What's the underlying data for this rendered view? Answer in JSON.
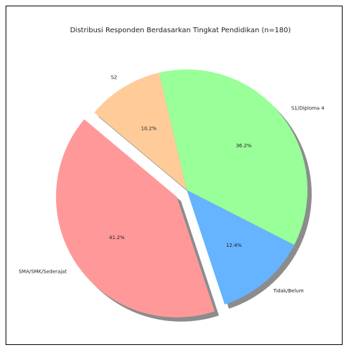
{
  "chart_data": {
    "type": "pie",
    "title": "Distribusi Responden Berdasarkan Tingkat Pendidikan (n=180)",
    "categories": [
      "SMA/SMK/Sederajat",
      "Tidak/Belum",
      "S1/Diploma 4",
      "S2"
    ],
    "values": [
      41.2,
      12.4,
      36.2,
      10.2
    ],
    "percent_labels": [
      "41.2%",
      "12.4%",
      "36.2%",
      "10.2%"
    ],
    "colors": [
      "#ff9999",
      "#66b3ff",
      "#99ff99",
      "#ffcc99"
    ],
    "explode": [
      0.1,
      0,
      0,
      0
    ],
    "shadow": true,
    "startangle": 140
  }
}
